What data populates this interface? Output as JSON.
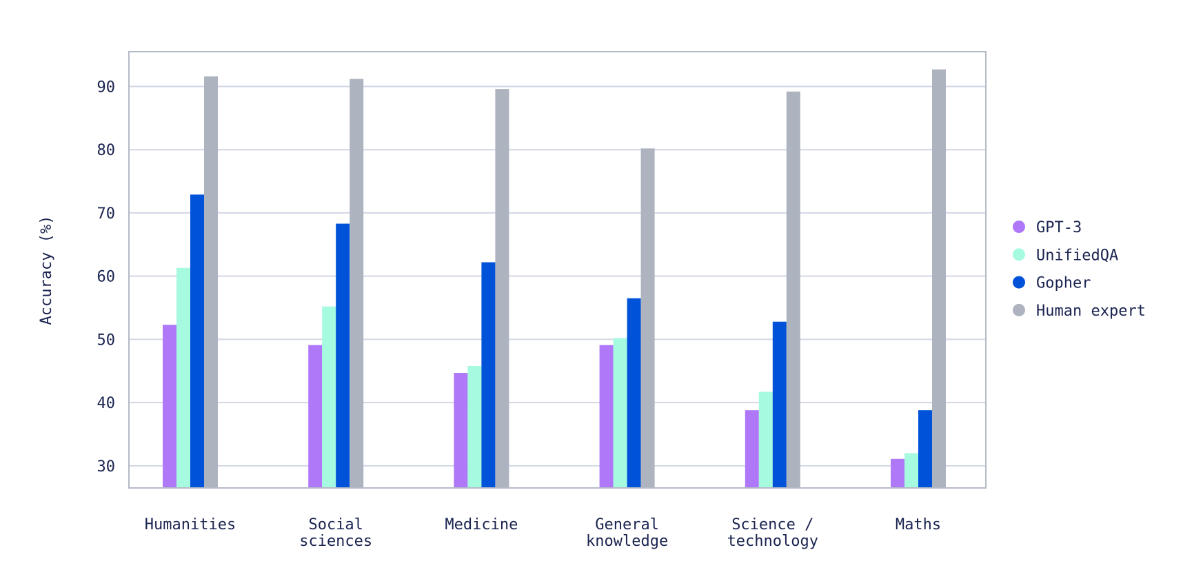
{
  "chart_data": {
    "type": "bar",
    "title": "",
    "xlabel": "",
    "ylabel": "Accuracy (%)",
    "ylim": [
      26.5,
      95.5
    ],
    "yticks": [
      30,
      40,
      50,
      60,
      70,
      80,
      90
    ],
    "grid": true,
    "legend_position": "right",
    "categories": [
      [
        "Humanities"
      ],
      [
        "Social",
        "sciences"
      ],
      [
        "Medicine"
      ],
      [
        "General",
        "knowledge"
      ],
      [
        "Science /",
        "technology"
      ],
      [
        "Maths"
      ]
    ],
    "series": [
      {
        "name": "GPT-3",
        "color": "#ae78f8",
        "values": [
          52.3,
          49.1,
          44.7,
          49.1,
          38.8,
          31.1
        ]
      },
      {
        "name": "UnifiedQA",
        "color": "#a5fae0",
        "values": [
          61.3,
          55.2,
          45.8,
          50.2,
          41.7,
          32.0
        ]
      },
      {
        "name": "Gopher",
        "color": "#0053d9",
        "values": [
          72.9,
          68.3,
          62.2,
          56.5,
          52.8,
          38.8
        ]
      },
      {
        "name": "Human expert",
        "color": "#adb3bf",
        "values": [
          91.6,
          91.2,
          89.6,
          80.2,
          89.2,
          92.7
        ]
      }
    ]
  }
}
